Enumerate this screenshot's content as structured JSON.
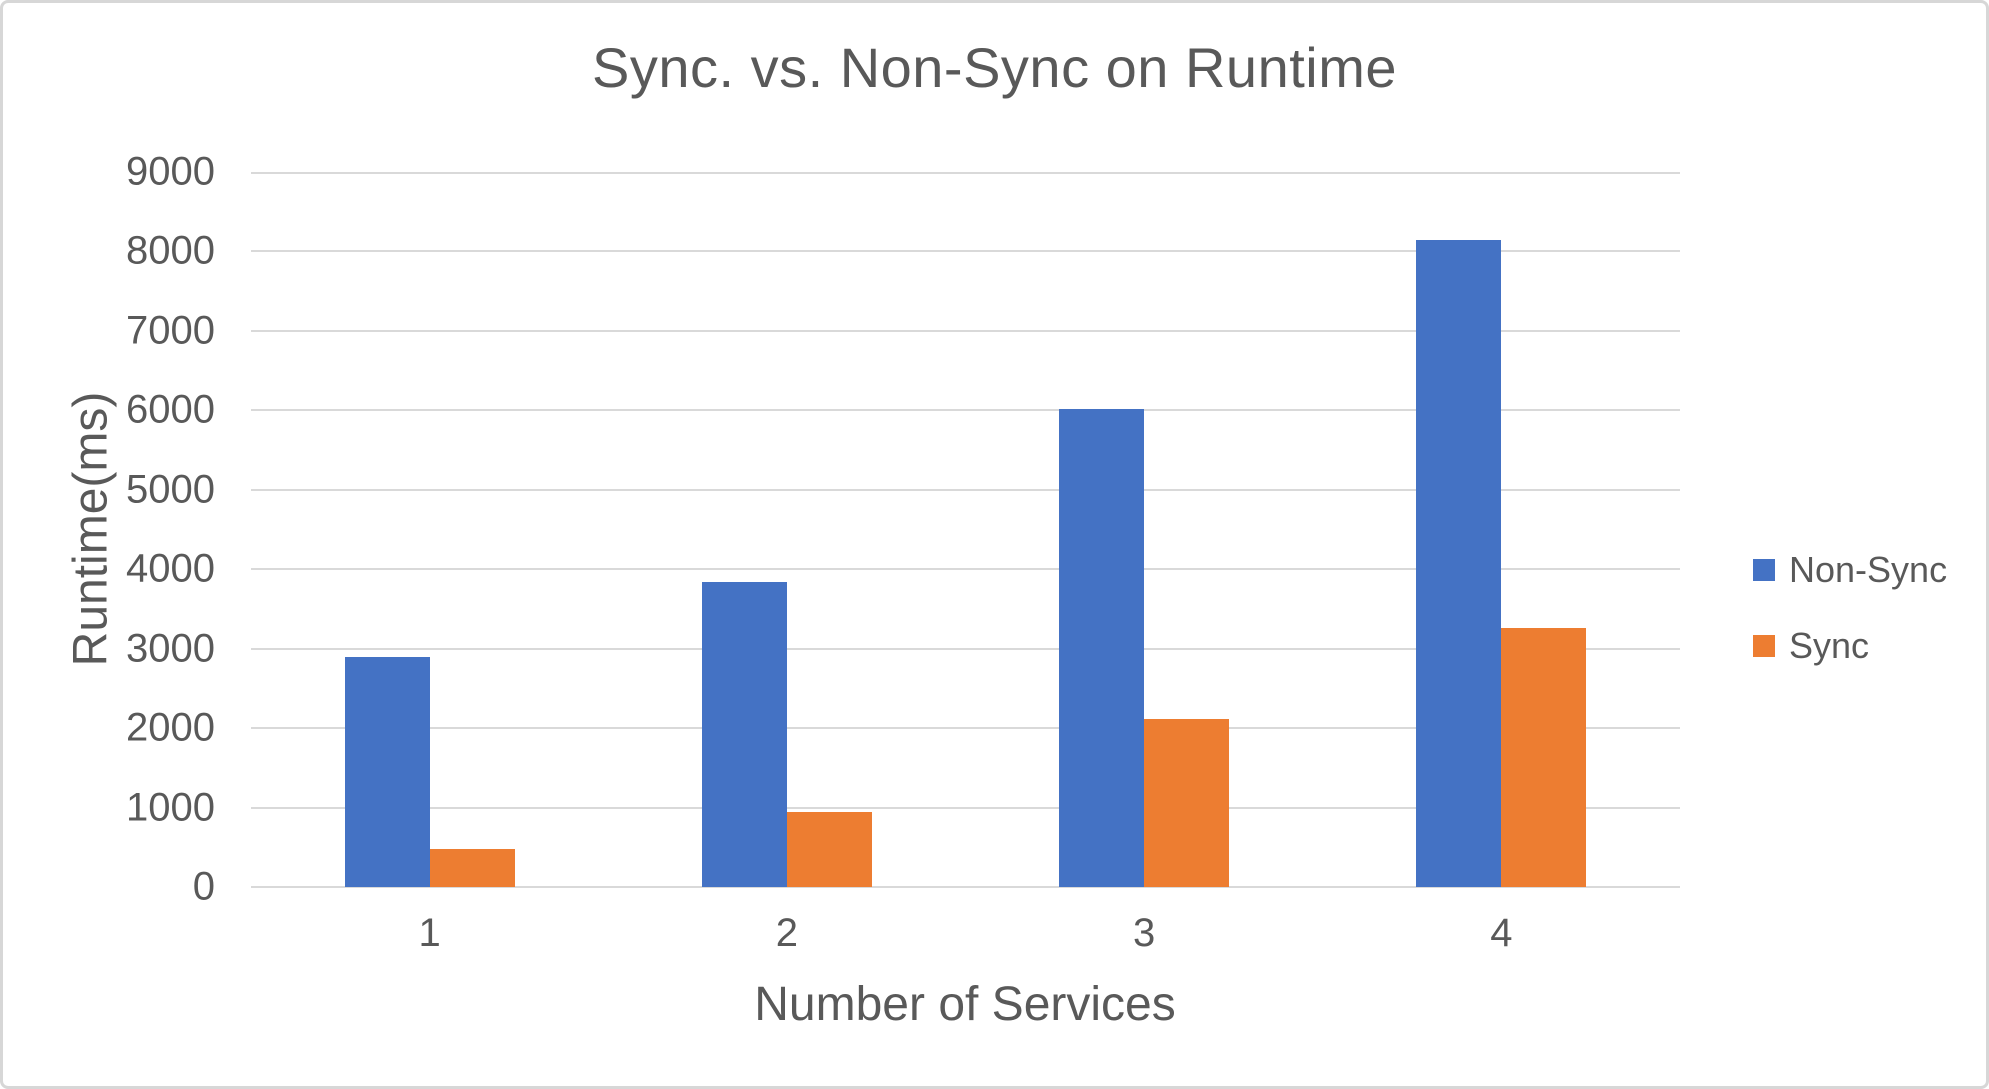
{
  "chart_data": {
    "type": "bar",
    "title": "Sync. vs. Non-Sync on Runtime",
    "xlabel": "Number of Services",
    "ylabel": "Runtime(ms)",
    "categories": [
      "1",
      "2",
      "3",
      "4"
    ],
    "series": [
      {
        "name": "Non-Sync",
        "color": "#4472C4",
        "values": [
          2900,
          3840,
          6020,
          8150
        ]
      },
      {
        "name": "Sync",
        "color": "#ED7D31",
        "values": [
          480,
          940,
          2110,
          3260
        ]
      }
    ],
    "ylim": [
      0,
      9000
    ],
    "yticks": [
      0,
      1000,
      2000,
      3000,
      4000,
      5000,
      6000,
      7000,
      8000,
      9000
    ],
    "grid": true,
    "legend_position": "right",
    "text_color": "#595959",
    "gridline_color": "#D9D9D9",
    "background": "#FFFFFF"
  }
}
